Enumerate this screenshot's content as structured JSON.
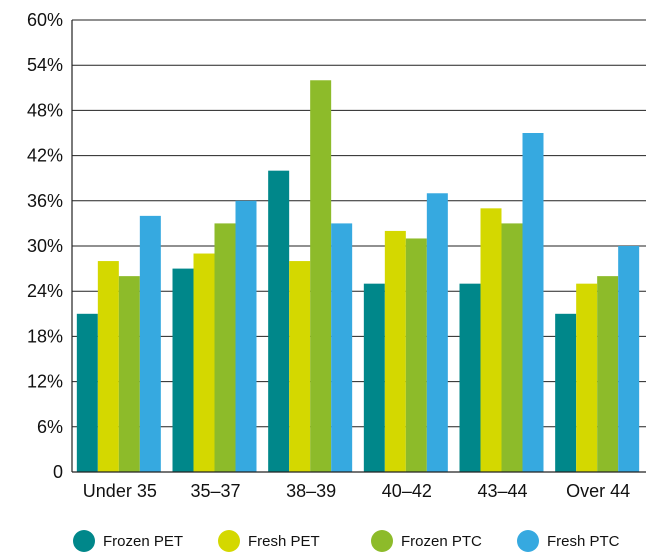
{
  "chart_data": {
    "type": "bar",
    "categories": [
      "Under 35",
      "35–37",
      "38–39",
      "40–42",
      "43–44",
      "Over 44"
    ],
    "series": [
      {
        "name": "Frozen PET",
        "color": "#00878a",
        "values": [
          21,
          27,
          40,
          25,
          25,
          21
        ]
      },
      {
        "name": "Fresh PET",
        "color": "#d4d800",
        "values": [
          28,
          29,
          28,
          32,
          35,
          25
        ]
      },
      {
        "name": "Frozen PTC",
        "color": "#8dbb2a",
        "values": [
          26,
          33,
          52,
          31,
          33,
          26
        ]
      },
      {
        "name": "Fresh PTC",
        "color": "#36a9e0",
        "values": [
          34,
          36,
          33,
          37,
          45,
          30
        ]
      }
    ],
    "y_ticks": [
      "0",
      "6%",
      "12%",
      "18%",
      "24%",
      "30%",
      "36%",
      "42%",
      "48%",
      "54%",
      "60%"
    ],
    "ylim": [
      0,
      60
    ],
    "grid": true,
    "legend_position": "bottom",
    "title": "",
    "xlabel": "",
    "ylabel": ""
  }
}
